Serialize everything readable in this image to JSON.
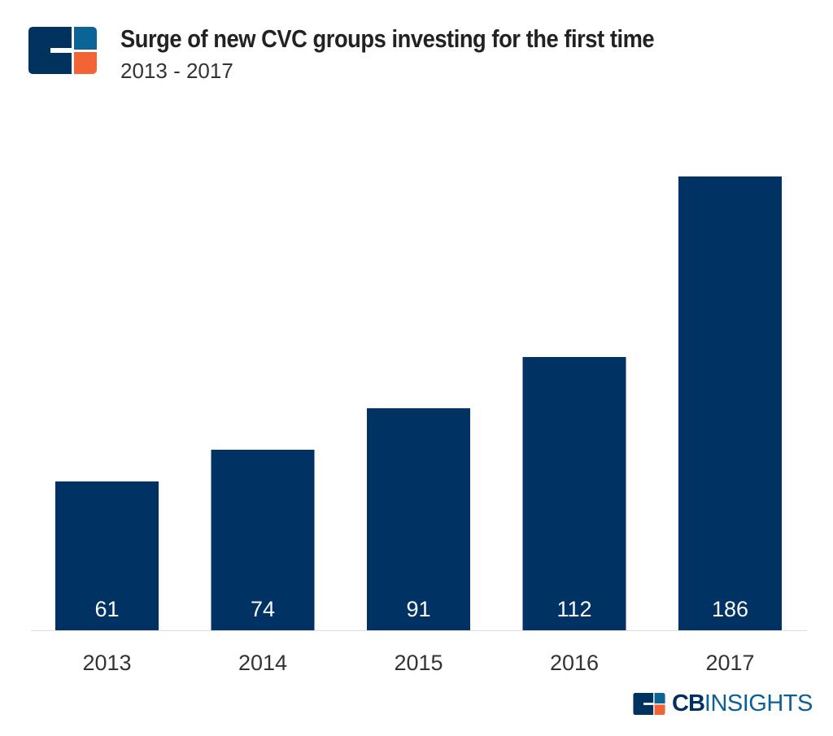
{
  "header": {
    "title": "Surge of new CVC groups investing for the first time",
    "subtitle": "2013 - 2017"
  },
  "brand": {
    "cb": "CB",
    "insights": "INSIGHTS"
  },
  "colors": {
    "bar": "#003263",
    "logo_navy": "#00325f",
    "logo_blue": "#0a6496",
    "logo_orange": "#f26436"
  },
  "chart_data": {
    "type": "bar",
    "title": "Surge of new CVC groups investing for the first time",
    "subtitle": "2013 - 2017",
    "categories": [
      "2013",
      "2014",
      "2015",
      "2016",
      "2017"
    ],
    "values": [
      61,
      74,
      91,
      112,
      186
    ],
    "ylim": [
      0,
      186
    ],
    "grid": false,
    "data_labels": true
  }
}
